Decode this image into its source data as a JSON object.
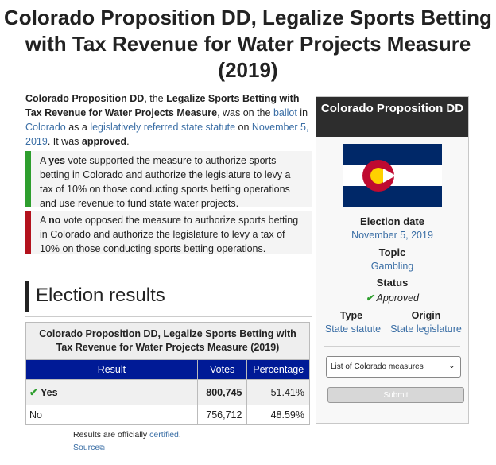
{
  "title": "Colorado Proposition DD, Legalize Sports Betting with Tax Revenue for Water Projects Measure (2019)",
  "intro": {
    "measure_name": "Colorado Proposition DD",
    "t1": ", the ",
    "bold2": "Legalize Sports Betting with Tax Revenue for Water Projects Measure",
    "t2": ", was on the ",
    "ballot_link": "ballot",
    "t3": " in ",
    "state_link": "Colorado",
    "t4": " as a ",
    "type_link": "legislatively referred state statute",
    "t5": " on ",
    "date_link": "November 5, 2019",
    "t6": ". It was ",
    "status_word": "approved",
    "t7": "."
  },
  "yes_vote": {
    "prefix": "A ",
    "word": "yes",
    "rest": " vote supported the measure to authorize sports betting in Colorado and authorize the legislature to levy a tax of 10% on those conducting sports betting operations and use revenue to fund state water projects."
  },
  "no_vote": {
    "prefix": "A ",
    "word": "no",
    "rest": " vote opposed the measure to authorize sports betting in Colorado and authorize the legislature to levy a tax of 10% on those conducting sports betting operations."
  },
  "section_heading": "Election results",
  "results_table": {
    "caption": "Colorado Proposition DD, Legalize Sports Betting with Tax Revenue for Water Projects Measure (2019)",
    "headers": [
      "Result",
      "Votes",
      "Percentage"
    ],
    "rows": [
      {
        "result": "Yes",
        "votes": "800,745",
        "percentage": "51.41%"
      },
      {
        "result": "No",
        "votes": "756,712",
        "percentage": "48.59%"
      }
    ]
  },
  "notes": {
    "certified_prefix": "Results are officially ",
    "certified_link": "certified",
    "certified_suffix": ".",
    "source_link": "Source"
  },
  "infobox": {
    "title": "Colorado Proposition DD",
    "election_date_label": "Election date",
    "election_date": "November 5, 2019",
    "topic_label": "Topic",
    "topic": "Gambling",
    "status_label": "Status",
    "status": "Approved",
    "type_label": "Type",
    "type": "State statute",
    "origin_label": "Origin",
    "origin": "State legislature",
    "select_value": "List of Colorado measures",
    "submit_label": "Submit"
  },
  "colors": {
    "header_blue": "#001a96",
    "yes_bar": "#2e9e2e",
    "no_bar": "#b3121d",
    "link": "#3a6ea5",
    "flag_blue": "#002868",
    "flag_red": "#bf0a30",
    "flag_gold": "#ffd100"
  }
}
